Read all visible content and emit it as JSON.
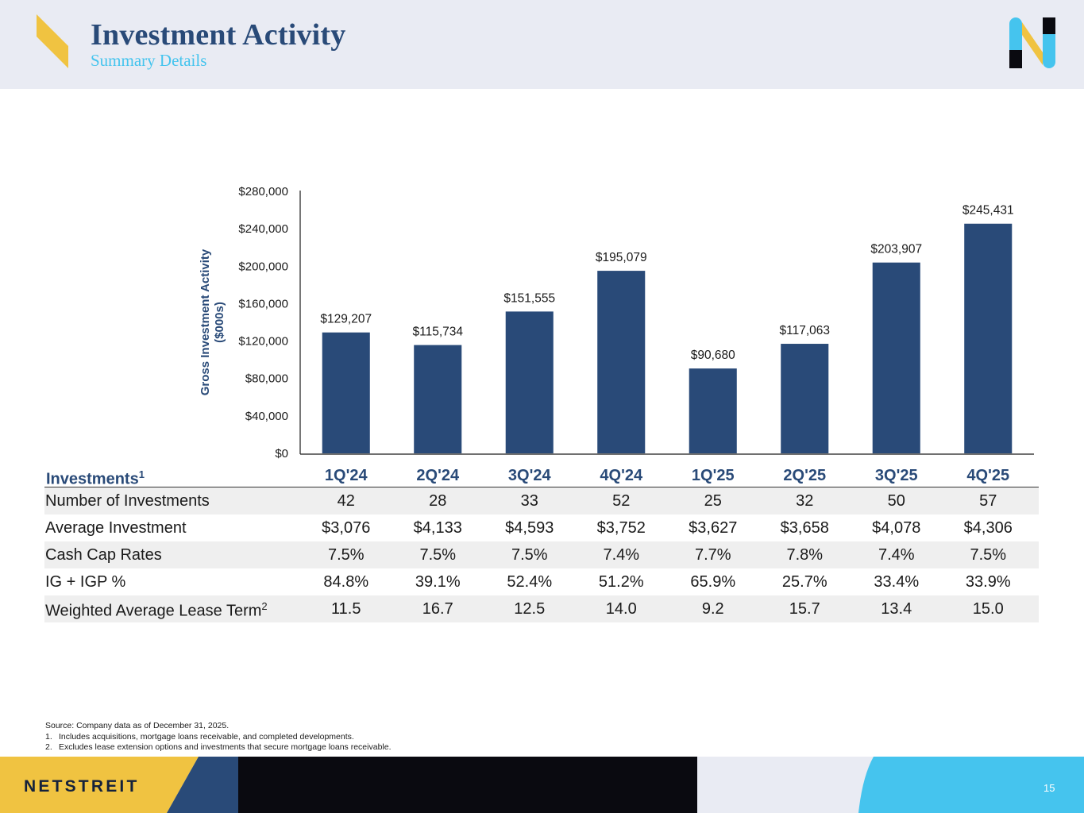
{
  "header": {
    "title": "Investment Activity",
    "subtitle": "Summary Details"
  },
  "colors": {
    "navy": "#294a78",
    "cyan": "#45c4ee",
    "yellow": "#f0c341",
    "black": "#0a0a10",
    "header_bg": "#e9ebf3"
  },
  "chart_data": {
    "type": "bar",
    "categories": [
      "1Q'24",
      "2Q'24",
      "3Q'24",
      "4Q'24",
      "1Q'25",
      "2Q'25",
      "3Q'25",
      "4Q'25"
    ],
    "values": [
      129207,
      115734,
      151555,
      195079,
      90680,
      117063,
      203907,
      245431
    ],
    "data_labels": [
      "$129,207",
      "$115,734",
      "$151,555",
      "$195,079",
      "$90,680",
      "$117,063",
      "$203,907",
      "$245,431"
    ],
    "ylabel_lines": [
      "Gross Investment Activity",
      "($000s)"
    ],
    "ylim": [
      0,
      280000
    ],
    "yticks": [
      0,
      40000,
      80000,
      120000,
      160000,
      200000,
      240000,
      280000
    ],
    "ytick_labels": [
      "$0",
      "$40,000",
      "$80,000",
      "$120,000",
      "$160,000",
      "$200,000",
      "$240,000",
      "$280,000"
    ],
    "bar_color": "#294a78",
    "grid": false
  },
  "table": {
    "header_label": "Investments",
    "header_sup": "1",
    "quarters": [
      "1Q'24",
      "2Q'24",
      "3Q'24",
      "4Q'24",
      "1Q'25",
      "2Q'25",
      "3Q'25",
      "4Q'25"
    ],
    "rows": [
      {
        "label": "Number of Investments",
        "sup": "",
        "values": [
          "42",
          "28",
          "33",
          "52",
          "25",
          "32",
          "50",
          "57"
        ]
      },
      {
        "label": "Average Investment",
        "sup": "",
        "values": [
          "$3,076",
          "$4,133",
          "$4,593",
          "$3,752",
          "$3,627",
          "$3,658",
          "$4,078",
          "$4,306"
        ]
      },
      {
        "label": "Cash Cap Rates",
        "sup": "",
        "values": [
          "7.5%",
          "7.5%",
          "7.5%",
          "7.4%",
          "7.7%",
          "7.8%",
          "7.4%",
          "7.5%"
        ]
      },
      {
        "label": "IG + IGP %",
        "sup": "",
        "values": [
          "84.8%",
          "39.1%",
          "52.4%",
          "51.2%",
          "65.9%",
          "25.7%",
          "33.4%",
          "33.9%"
        ]
      },
      {
        "label": "Weighted Average Lease Term",
        "sup": "2",
        "values": [
          "11.5",
          "16.7",
          "12.5",
          "14.0",
          "9.2",
          "15.7",
          "13.4",
          "15.0"
        ]
      }
    ]
  },
  "footnotes": {
    "source": "Source: Company data as of December 31, 2025.",
    "notes": [
      {
        "num": "1.",
        "text": "Includes acquisitions, mortgage loans receivable, and completed developments."
      },
      {
        "num": "2.",
        "text": "Excludes lease extension options and investments that secure mortgage loans receivable."
      }
    ]
  },
  "footer": {
    "brand": "NETSTREIT",
    "page_number": "15"
  }
}
